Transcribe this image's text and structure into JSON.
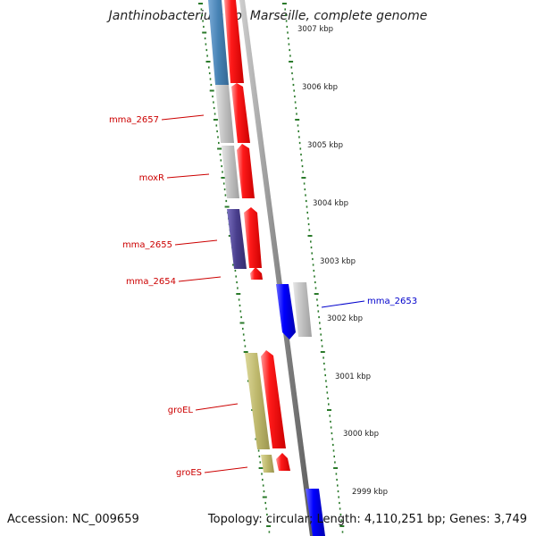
{
  "title": "Janthinobacterium sp. Marseille, complete genome",
  "accession_text": "Accession: NC_009659",
  "summary_text": "Topology: circular; Length: 4,110,251 bp; Genes: 3,749",
  "scale_labels": [
    {
      "kbp": 3007,
      "label": "3007 kbp"
    },
    {
      "kbp": 3006,
      "label": "3006 kbp"
    },
    {
      "kbp": 3005,
      "label": "3005 kbp"
    },
    {
      "kbp": 3004,
      "label": "3004 kbp"
    },
    {
      "kbp": 3003,
      "label": "3003 kbp"
    },
    {
      "kbp": 3002,
      "label": "3002 kbp"
    },
    {
      "kbp": 3001,
      "label": "3001 kbp"
    },
    {
      "kbp": 3000,
      "label": "3000 kbp"
    },
    {
      "kbp": 2999,
      "label": "2999 kbp"
    }
  ],
  "gene_labels": [
    {
      "name": "mma_2657",
      "strand": "reverse",
      "color": "#cc0000"
    },
    {
      "name": "moxR",
      "strand": "reverse",
      "color": "#cc0000"
    },
    {
      "name": "mma_2655",
      "strand": "reverse",
      "color": "#cc0000"
    },
    {
      "name": "mma_2654",
      "strand": "reverse",
      "color": "#cc0000"
    },
    {
      "name": "mma_2653",
      "strand": "forward",
      "color": "#0000cc"
    },
    {
      "name": "groEL",
      "strand": "reverse",
      "color": "#cc0000"
    },
    {
      "name": "groES",
      "strand": "reverse",
      "color": "#cc0000"
    }
  ],
  "colors": {
    "backbone": "#8a8a8a",
    "reverse_gene": "#ff0000",
    "forward_gene": "#0000ff",
    "tick": "#2a7a2a",
    "steelblue_cog": "#4682b4",
    "gray_cog": "#c0c0c0",
    "slate_cog": "#483d8b",
    "khaki_cog": "#bdb76b"
  }
}
